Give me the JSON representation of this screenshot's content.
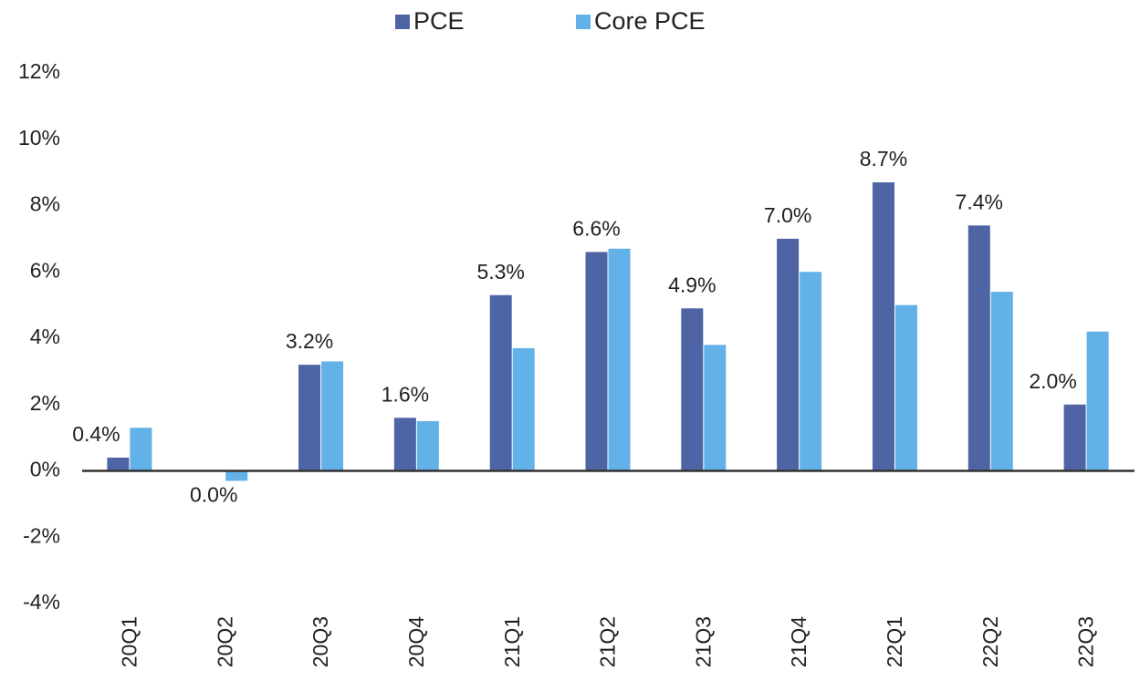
{
  "chart_data": {
    "type": "bar",
    "categories": [
      "20Q1",
      "20Q2",
      "20Q3",
      "20Q4",
      "21Q1",
      "21Q2",
      "21Q3",
      "21Q4",
      "22Q1",
      "22Q2",
      "22Q3"
    ],
    "series": [
      {
        "name": "PCE",
        "color": "#4e64a4",
        "values": [
          0.4,
          0.0,
          3.2,
          1.6,
          5.3,
          6.6,
          4.9,
          7.0,
          8.7,
          7.4,
          2.0
        ],
        "value_labels": [
          "0.4%",
          "0.0%",
          "3.2%",
          "1.6%",
          "5.3%",
          "6.6%",
          "4.9%",
          "7.0%",
          "8.7%",
          "7.4%",
          "2.0%"
        ]
      },
      {
        "name": "Core PCE",
        "color": "#62b1e8",
        "values": [
          1.3,
          -0.3,
          3.3,
          1.5,
          3.7,
          6.7,
          3.8,
          6.0,
          5.0,
          5.4,
          4.2
        ]
      }
    ],
    "ylim": [
      -4,
      12
    ],
    "yticks": [
      {
        "value": -4,
        "label": "-4%"
      },
      {
        "value": -2,
        "label": "-2%"
      },
      {
        "value": 0,
        "label": "0%"
      },
      {
        "value": 2,
        "label": "2%"
      },
      {
        "value": 4,
        "label": "4%"
      },
      {
        "value": 6,
        "label": "6%"
      },
      {
        "value": 8,
        "label": "8%"
      },
      {
        "value": 10,
        "label": "10%"
      },
      {
        "value": 12,
        "label": "12%"
      }
    ],
    "grid": false,
    "legend": "top"
  }
}
